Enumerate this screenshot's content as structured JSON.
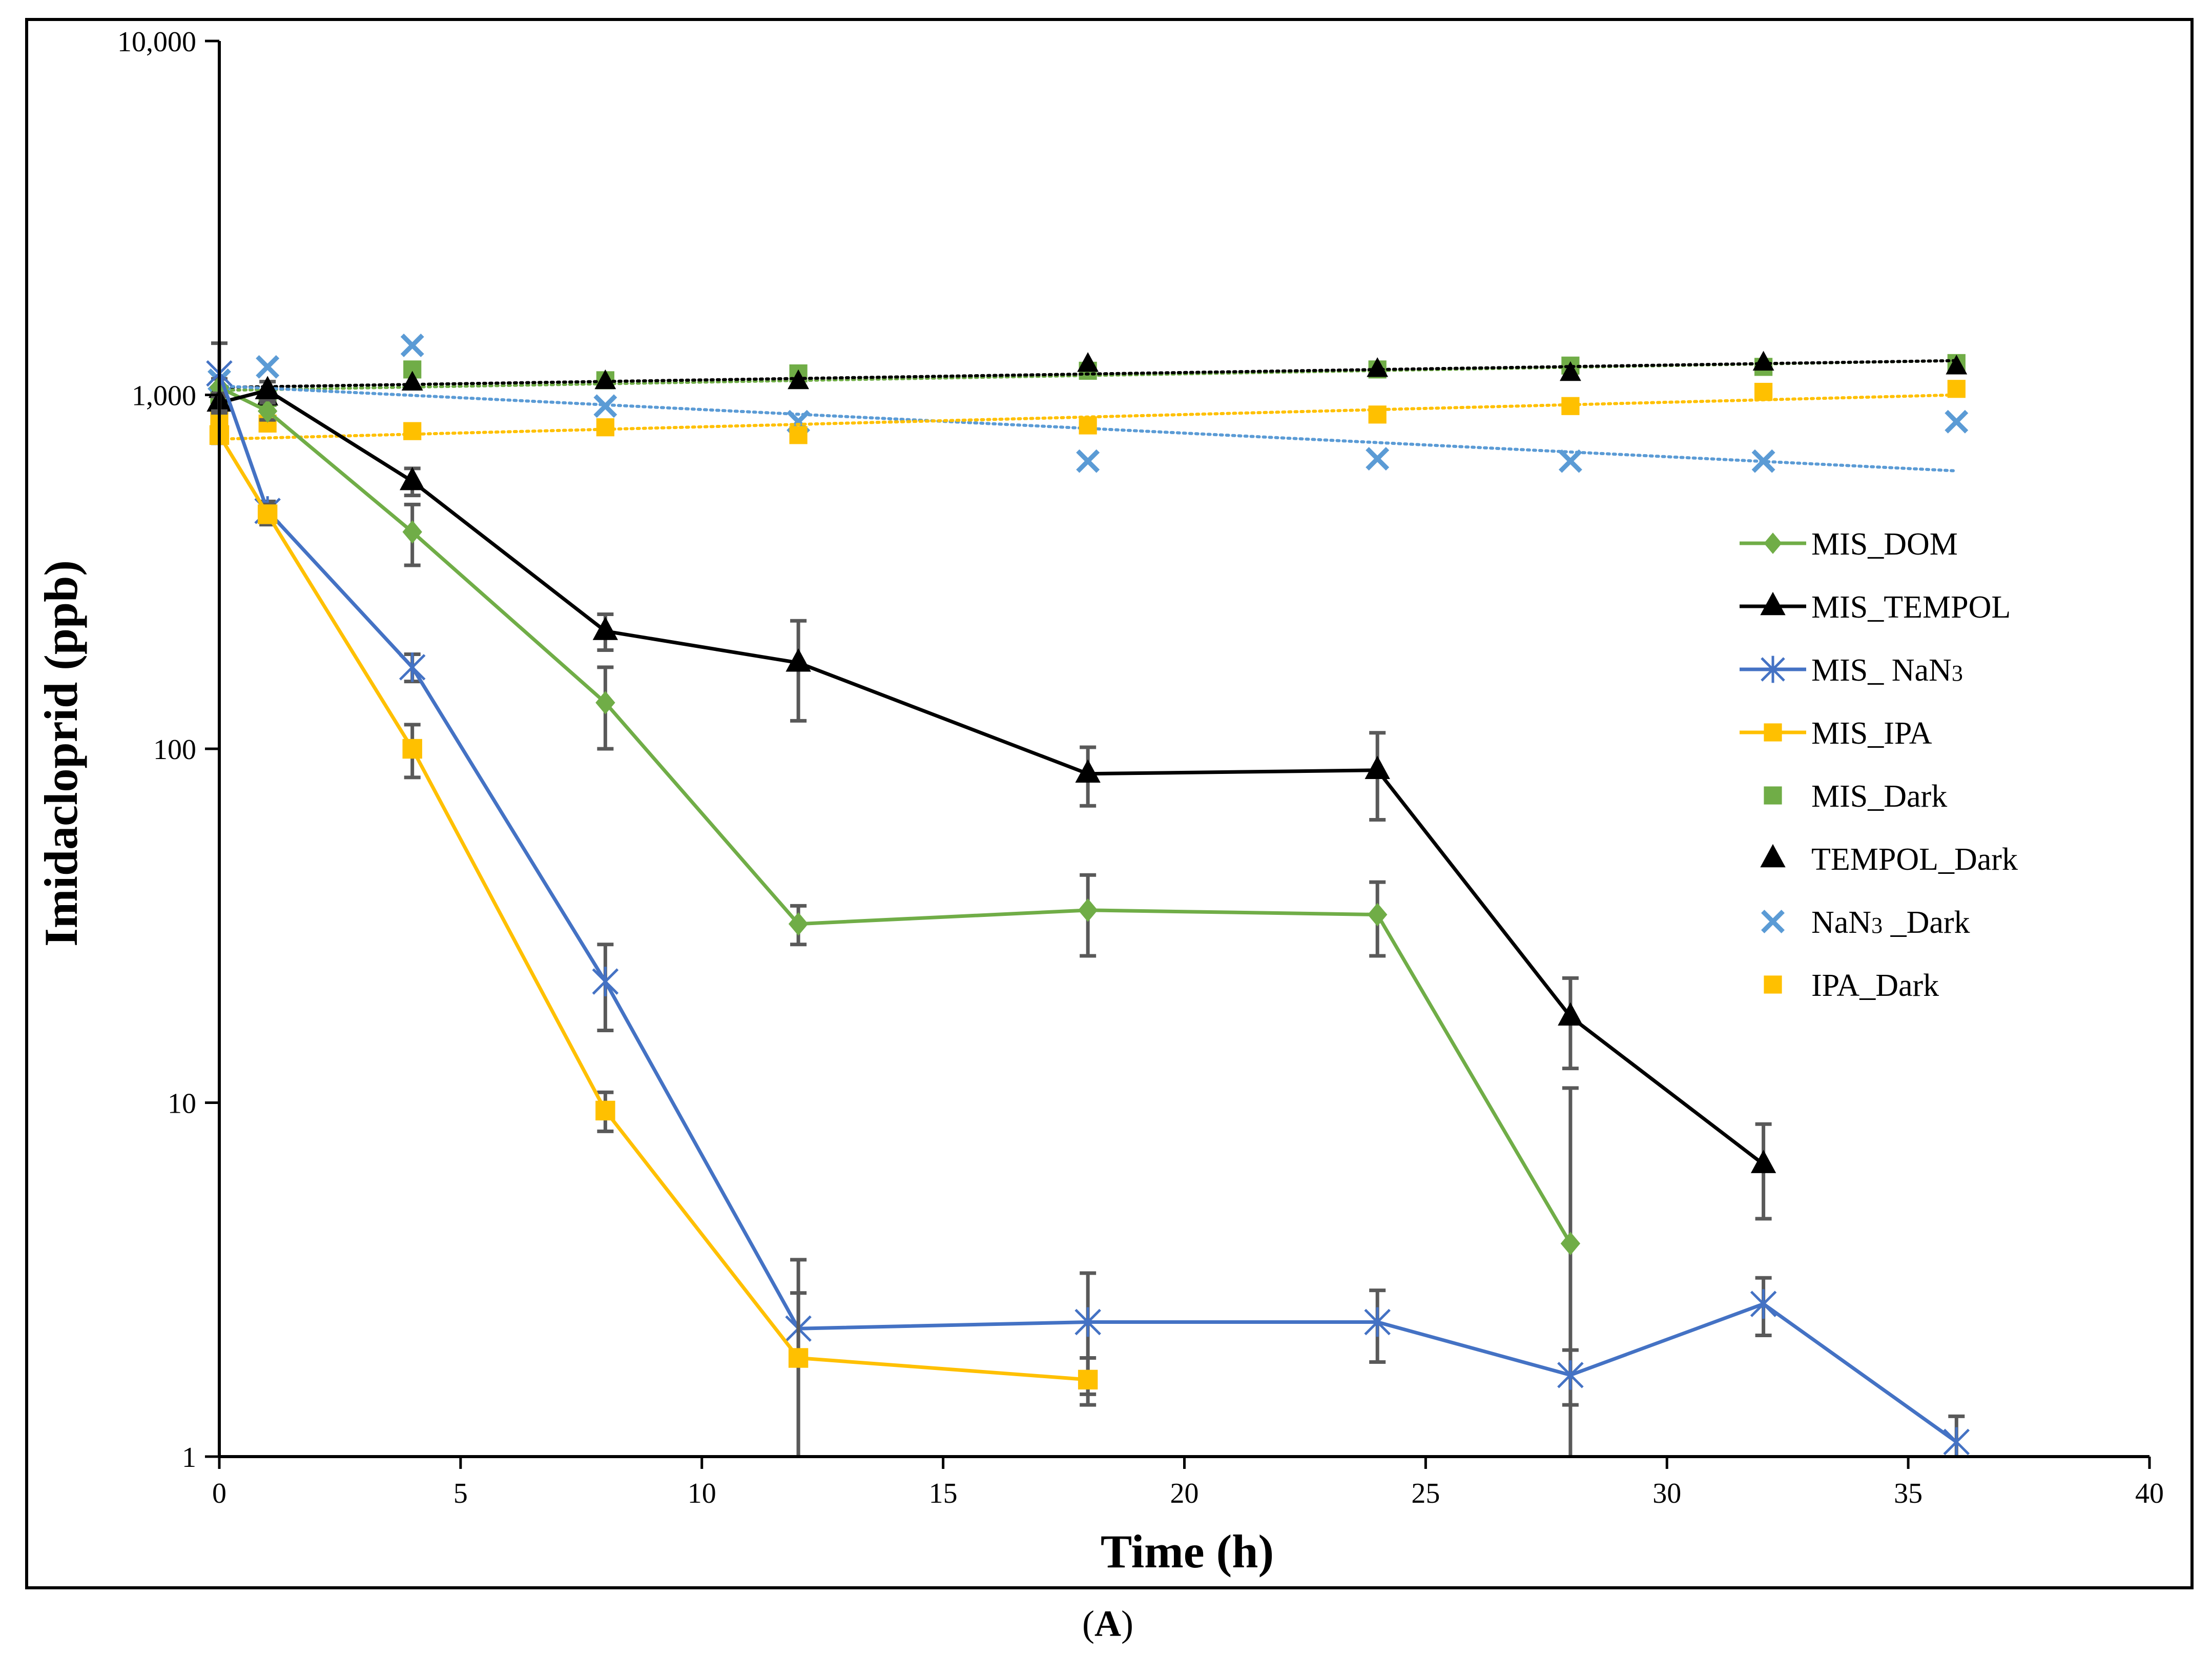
{
  "chart_data": {
    "type": "line",
    "title": "",
    "caption": {
      "open": "(",
      "letter": "A",
      "close": ")"
    },
    "xlabel": "Time (h)",
    "ylabel": "Imidacloprid (ppb)",
    "xlim": [
      0,
      40
    ],
    "ylim": [
      1,
      10000
    ],
    "yscale": "log",
    "grid": false,
    "legend_position": "right",
    "xticks": [
      0,
      5,
      10,
      15,
      20,
      25,
      30,
      35,
      40
    ],
    "xtick_labels": [
      "0",
      "5",
      "10",
      "15",
      "20",
      "25",
      "30",
      "35",
      "40"
    ],
    "yticks": [
      1,
      10,
      100,
      1000,
      10000
    ],
    "ytick_labels": [
      "1",
      "10",
      "100",
      "1,000",
      "10,000"
    ],
    "colors": {
      "green": "#70ad47",
      "black": "#000000",
      "blue": "#4472c4",
      "orange": "#ffc000",
      "lightblue": "#5b9bd5",
      "errorbar": "#595959"
    },
    "series": [
      {
        "name": "MIS_DOM",
        "style": "solid",
        "marker": "diamond",
        "color": "#70ad47",
        "x": [
          0,
          1,
          4,
          8,
          12,
          18,
          24,
          28
        ],
        "y": [
          1050,
          900,
          410,
          135,
          32,
          35,
          34,
          4
        ],
        "err": [
          60,
          50,
          80,
          35,
          4,
          9,
          8,
          7
        ]
      },
      {
        "name": "MIS_TEMPOL",
        "style": "solid",
        "marker": "triangle",
        "color": "#000000",
        "x": [
          0,
          1,
          4,
          8,
          12,
          18,
          24,
          28,
          32
        ],
        "y": [
          950,
          1030,
          570,
          215,
          175,
          85,
          87,
          17.5,
          6.7
        ],
        "err": [
          60,
          60,
          50,
          25,
          55,
          16,
          24,
          5,
          2
        ]
      },
      {
        "name": "MIS_ NaN3",
        "label_text": "MIS_ NaN",
        "label_sub": "3",
        "style": "solid",
        "marker": "star",
        "color": "#4472c4",
        "x": [
          0,
          1,
          4,
          8,
          12,
          18,
          24,
          28,
          32,
          36
        ],
        "y": [
          1150,
          470,
          170,
          22,
          2.3,
          2.4,
          2.4,
          1.7,
          2.7,
          1.1
        ],
        "err": [
          250,
          30,
          15,
          6,
          1.3,
          0.9,
          0.55,
          0.3,
          0.5,
          0.2
        ]
      },
      {
        "name": "MIS_IPA",
        "style": "solid",
        "marker": "square",
        "color": "#ffc000",
        "x": [
          0,
          1,
          4,
          8,
          12,
          18
        ],
        "y": [
          770,
          460,
          100,
          9.5,
          1.9,
          1.65
        ],
        "err": [
          40,
          30,
          17,
          1.2,
          1.0,
          0.25
        ]
      },
      {
        "name": "MIS_Dark",
        "style": "trend",
        "marker": "square",
        "color": "#70ad47",
        "x": [
          0,
          1,
          4,
          8,
          12,
          18,
          24,
          28,
          32,
          36
        ],
        "y": [
          1000,
          980,
          1180,
          1100,
          1150,
          1170,
          1180,
          1210,
          1200,
          1230
        ],
        "trend": [
          1030,
          1250
        ]
      },
      {
        "name": "TEMPOL_Dark",
        "style": "trend",
        "marker": "triangle",
        "color": "#000000",
        "x": [
          0,
          1,
          4,
          8,
          12,
          18,
          24,
          28,
          32,
          36
        ],
        "y": [
          1030,
          980,
          1080,
          1090,
          1090,
          1220,
          1180,
          1150,
          1230,
          1200
        ],
        "trend": [
          1050,
          1250
        ]
      },
      {
        "name": "NaN3 _Dark",
        "label_text": "NaN",
        "label_sub": "3",
        "label_tail": " _Dark",
        "style": "trend",
        "marker": "x",
        "color": "#5b9bd5",
        "x": [
          0,
          1,
          4,
          8,
          12,
          18,
          24,
          28,
          32,
          36
        ],
        "y": [
          1100,
          1200,
          1380,
          930,
          840,
          650,
          660,
          650,
          650,
          840
        ],
        "trend": [
          1060,
          610
        ]
      },
      {
        "name": "IPA_Dark",
        "style": "trend",
        "marker": "square",
        "color": "#ffc000",
        "x": [
          0,
          1,
          4,
          8,
          12,
          18,
          24,
          28,
          32,
          36
        ],
        "y": [
          860,
          830,
          790,
          810,
          770,
          820,
          880,
          930,
          1020,
          1040
        ],
        "trend": [
          750,
          1000
        ]
      }
    ]
  }
}
